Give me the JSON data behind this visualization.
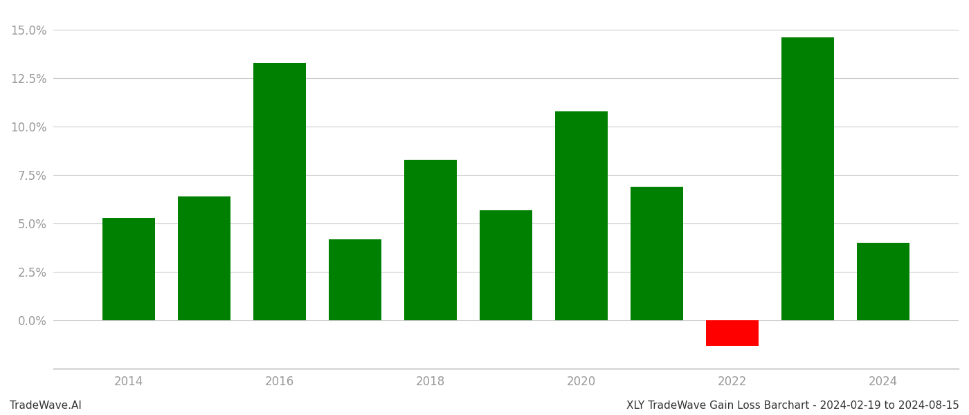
{
  "years": [
    2014,
    2015,
    2016,
    2017,
    2018,
    2019,
    2020,
    2021,
    2022,
    2023,
    2024
  ],
  "values": [
    0.053,
    0.064,
    0.133,
    0.042,
    0.083,
    0.057,
    0.108,
    0.069,
    -0.013,
    0.146,
    0.04
  ],
  "bar_colors": [
    "#008000",
    "#008000",
    "#008000",
    "#008000",
    "#008000",
    "#008000",
    "#008000",
    "#008000",
    "#ff0000",
    "#008000",
    "#008000"
  ],
  "title": "XLY TradeWave Gain Loss Barchart - 2024-02-19 to 2024-08-15",
  "footer_left": "TradeWave.AI",
  "ylim_min": -0.025,
  "ylim_max": 0.16,
  "yticks": [
    0.0,
    0.025,
    0.05,
    0.075,
    0.1,
    0.125,
    0.15
  ],
  "xtick_labels": [
    "2014",
    "",
    "2016",
    "",
    "2018",
    "",
    "2020",
    "",
    "2022",
    "",
    "2024"
  ],
  "background_color": "#ffffff",
  "grid_color": "#cccccc",
  "tick_label_color": "#999999",
  "bar_width": 0.7
}
